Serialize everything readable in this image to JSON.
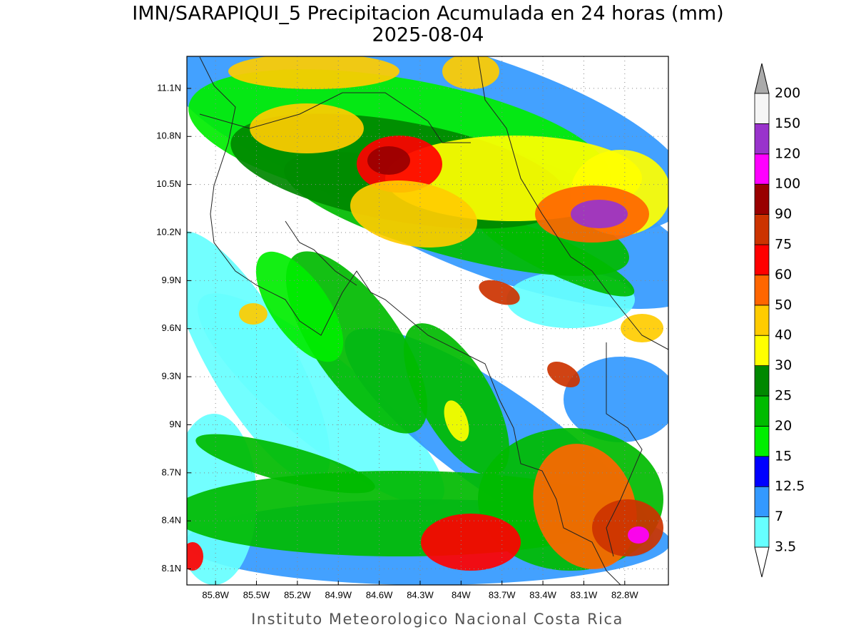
{
  "header": {
    "title": "IMN/SARAPIQUI_5 Precipitacion Acumulada en 24 horas (mm)",
    "date": "2025-08-04"
  },
  "map": {
    "xlim": [
      -86.01,
      -82.48
    ],
    "ylim": [
      8.0,
      11.3
    ],
    "xticks": [
      {
        "value": -85.8,
        "label": "85.8W"
      },
      {
        "value": -85.5,
        "label": "85.5W"
      },
      {
        "value": -85.2,
        "label": "85.2W"
      },
      {
        "value": -84.9,
        "label": "84.9W"
      },
      {
        "value": -84.6,
        "label": "84.6W"
      },
      {
        "value": -84.3,
        "label": "84.3W"
      },
      {
        "value": -84.0,
        "label": "84W"
      },
      {
        "value": -83.7,
        "label": "83.7W"
      },
      {
        "value": -83.4,
        "label": "83.4W"
      },
      {
        "value": -83.1,
        "label": "83.1W"
      },
      {
        "value": -82.8,
        "label": "82.8W"
      }
    ],
    "yticks": [
      {
        "value": 8.1,
        "label": "8.1N"
      },
      {
        "value": 8.4,
        "label": "8.4N"
      },
      {
        "value": 8.7,
        "label": "8.7N"
      },
      {
        "value": 9.0,
        "label": "9N"
      },
      {
        "value": 9.3,
        "label": "9.3N"
      },
      {
        "value": 9.6,
        "label": "9.6N"
      },
      {
        "value": 9.9,
        "label": "9.9N"
      },
      {
        "value": 10.2,
        "label": "10.2N"
      },
      {
        "value": 10.5,
        "label": "10.5N"
      },
      {
        "value": 10.8,
        "label": "10.8N"
      },
      {
        "value": 11.1,
        "label": "11.1N"
      }
    ]
  },
  "colorbar": {
    "levels": [
      3.5,
      7,
      12.5,
      15,
      20,
      25,
      30,
      40,
      50,
      60,
      75,
      90,
      100,
      120,
      150,
      200
    ],
    "colors": [
      "#66ffff",
      "#3399ff",
      "#0000ff",
      "#00ee00",
      "#00bb00",
      "#008800",
      "#ffff00",
      "#ffcc00",
      "#ff6600",
      "#ff0000",
      "#cc3300",
      "#990000",
      "#ff00ff",
      "#9933cc",
      "#f5f5f5"
    ],
    "under_color": "#ffffff",
    "over_color": "#aaaaaa"
  },
  "footer": "Instituto Meteorologico Nacional Costa Rica"
}
